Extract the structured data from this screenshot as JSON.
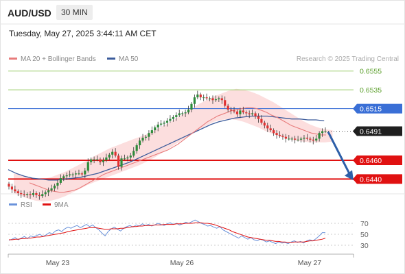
{
  "header": {
    "symbol": "AUD/USD",
    "timeframe": "30 MIN",
    "timestamp": "Tuesday, May 27, 2025 3:44:11 AM CET"
  },
  "legend": {
    "ma20_label": "MA 20 + Bollinger Bands",
    "ma50_label": "MA 50",
    "credit": "Research © 2025 Trading Central"
  },
  "rsi_legend": {
    "rsi_label": "RSI",
    "ma_label": "9MA"
  },
  "colors": {
    "bull": "#2e8b3a",
    "bear": "#e03131",
    "ma20": "#e87b7b",
    "ma50": "#3b5b9b",
    "band": "#fbd3d3",
    "target_line": "#9acd6a",
    "pivot_line": "#3a6fd6",
    "support_line": "#e01111",
    "rsi": "#6a92da",
    "rsi_ma": "#e01111",
    "arrow": "#2d5fa8"
  },
  "chart_data": [
    {
      "type": "line",
      "title": "AUD/USD 30 MIN",
      "x_tick_labels": [
        "May 23",
        "May 26",
        "May 27"
      ],
      "ylim": [
        0.6425,
        0.6565
      ],
      "levels": [
        {
          "name": "target-2",
          "value": 0.6555,
          "label": "0.6555",
          "kind": "target"
        },
        {
          "name": "target-1",
          "value": 0.6535,
          "label": "0.6535",
          "kind": "target"
        },
        {
          "name": "pivot",
          "value": 0.6515,
          "label": "0.6515",
          "kind": "pivot"
        },
        {
          "name": "support-1",
          "value": 0.646,
          "label": "0.6460",
          "kind": "support"
        },
        {
          "name": "support-2",
          "value": 0.644,
          "label": "0.6440",
          "kind": "support"
        }
      ],
      "last_price": "0.6491",
      "series": [
        {
          "name": "MA 20 + Bollinger Bands"
        },
        {
          "name": "MA 50"
        }
      ],
      "close": [
        0.6432,
        0.6429,
        0.6427,
        0.6425,
        0.6424,
        0.6423,
        0.6424,
        0.6423,
        0.6425,
        0.6423,
        0.6422,
        0.6424,
        0.6426,
        0.6428,
        0.643,
        0.6433,
        0.6436,
        0.6441,
        0.6443,
        0.6444,
        0.6445,
        0.6445,
        0.6446,
        0.6446,
        0.6445,
        0.6449,
        0.6458,
        0.6461,
        0.6461,
        0.6461,
        0.6458,
        0.646,
        0.6463,
        0.6466,
        0.6469,
        0.6465,
        0.6453,
        0.6462,
        0.6462,
        0.6463,
        0.6465,
        0.647,
        0.6476,
        0.6481,
        0.6484,
        0.6485,
        0.6489,
        0.6492,
        0.6495,
        0.6498,
        0.6499,
        0.65,
        0.6502,
        0.6504,
        0.6506,
        0.6508,
        0.651,
        0.651,
        0.6511,
        0.6514,
        0.652,
        0.6527,
        0.653,
        0.6527,
        0.6527,
        0.6526,
        0.6526,
        0.6524,
        0.6525,
        0.6526,
        0.6524,
        0.6518,
        0.6514,
        0.6513,
        0.6512,
        0.6509,
        0.6513,
        0.6511,
        0.651,
        0.6509,
        0.651,
        0.6507,
        0.6504,
        0.65,
        0.6497,
        0.6494,
        0.6492,
        0.6489,
        0.6487,
        0.6486,
        0.6485,
        0.6483,
        0.6483,
        0.6483,
        0.6482,
        0.6482,
        0.6483,
        0.6484,
        0.6483,
        0.6482,
        0.6481,
        0.6483,
        0.6489,
        0.6491,
        0.6491
      ],
      "ma20": [
        0.6436,
        0.6434,
        0.6432,
        0.643,
        0.6428,
        0.6427,
        0.6426,
        0.6426,
        0.6427,
        0.6428,
        0.643,
        0.6433,
        0.6436,
        0.6439,
        0.6442,
        0.6445,
        0.6447,
        0.6449,
        0.6451,
        0.6453,
        0.6455,
        0.6457,
        0.6459,
        0.6461,
        0.6463,
        0.6465,
        0.6467,
        0.6469,
        0.6471,
        0.6474,
        0.6477,
        0.6481,
        0.6485,
        0.6489,
        0.6493,
        0.6497,
        0.6501,
        0.6504,
        0.6507,
        0.6509,
        0.6511,
        0.6513,
        0.6514,
        0.6515,
        0.6516,
        0.6516,
        0.6515,
        0.6513,
        0.6511,
        0.6508,
        0.6506,
        0.6503,
        0.65,
        0.6497,
        0.6495,
        0.6493,
        0.6491,
        0.6489,
        0.6488,
        0.6487,
        0.6487
      ],
      "ma20_x0": 43,
      "band_upper": [
        0.6446,
        0.6444,
        0.6442,
        0.644,
        0.644,
        0.6442,
        0.6445,
        0.6448,
        0.6452,
        0.6456,
        0.646,
        0.6465,
        0.6469,
        0.6473,
        0.6476,
        0.6479,
        0.6482,
        0.6485,
        0.6488,
        0.6492,
        0.6496,
        0.65,
        0.6505,
        0.651,
        0.6515,
        0.652,
        0.6524,
        0.6528,
        0.6531,
        0.6534,
        0.6536,
        0.6535,
        0.6533,
        0.653,
        0.6526,
        0.6522,
        0.6517,
        0.6512,
        0.6507,
        0.6502,
        0.6498,
        0.6495,
        0.6493,
        0.6492
      ],
      "band_lower": [
        0.6425,
        0.6422,
        0.6419,
        0.6417,
        0.6416,
        0.6417,
        0.6419,
        0.6422,
        0.6426,
        0.643,
        0.6434,
        0.6437,
        0.644,
        0.6443,
        0.6446,
        0.6449,
        0.6452,
        0.6455,
        0.6459,
        0.6463,
        0.6468,
        0.6473,
        0.6478,
        0.6483,
        0.6488,
        0.6493,
        0.6497,
        0.6501,
        0.6503,
        0.6504,
        0.6503,
        0.6501,
        0.6498,
        0.6495,
        0.6491,
        0.6488,
        0.6485,
        0.6483,
        0.6481,
        0.648,
        0.6479,
        0.6479,
        0.6479,
        0.648
      ],
      "ma50": [
        0.645,
        0.6446,
        0.6443,
        0.6441,
        0.644,
        0.6439,
        0.6439,
        0.644,
        0.6441,
        0.6442,
        0.6444,
        0.6446,
        0.6449,
        0.6452,
        0.6455,
        0.6458,
        0.6462,
        0.6466,
        0.647,
        0.6474,
        0.6478,
        0.6482,
        0.6486,
        0.649,
        0.6494,
        0.6498,
        0.6501,
        0.6503,
        0.6505,
        0.6506,
        0.6507,
        0.6507,
        0.6507,
        0.6506,
        0.6505,
        0.6504,
        0.6504,
        0.6503,
        0.6503,
        0.6502
      ],
      "ma50_x0": 12
    },
    {
      "type": "line",
      "title": "RSI",
      "yticks": [
        30,
        50,
        70
      ],
      "ylim": [
        20,
        80
      ],
      "series": [
        {
          "name": "RSI",
          "values": [
            39,
            41,
            44,
            40,
            43,
            46,
            42,
            47,
            45,
            48,
            50,
            46,
            49,
            53,
            51,
            56,
            58,
            55,
            60,
            63,
            61,
            64,
            66,
            62,
            65,
            68,
            64,
            67,
            62,
            58,
            52,
            47,
            55,
            60,
            63,
            59,
            56,
            61,
            64,
            66,
            63,
            67,
            65,
            69,
            66,
            68,
            65,
            67,
            70,
            68,
            66,
            69,
            71,
            68,
            70,
            67,
            69,
            72,
            70,
            73,
            76,
            73,
            70,
            68,
            65,
            66,
            63,
            61,
            64,
            58,
            55,
            52,
            49,
            46,
            43,
            47,
            44,
            41,
            44,
            40,
            38,
            41,
            39,
            36,
            38,
            35,
            33,
            36,
            34,
            35,
            33,
            36,
            38,
            35,
            37,
            34,
            38,
            40,
            38,
            42,
            47,
            53,
            53
          ]
        },
        {
          "name": "9MA",
          "values": [
            40,
            40,
            41,
            41,
            42,
            42,
            43,
            43,
            44,
            45,
            45,
            46,
            47,
            48,
            49,
            50,
            51,
            52,
            53,
            55,
            56,
            57,
            58,
            59,
            60,
            61,
            62,
            62,
            62,
            61,
            60,
            59,
            59,
            60,
            60,
            60,
            61,
            61,
            62,
            63,
            64,
            64,
            65,
            65,
            66,
            66,
            66,
            67,
            67,
            67,
            68,
            68,
            68,
            68,
            69,
            69,
            69,
            70,
            70,
            70,
            71,
            71,
            71,
            70,
            70,
            69,
            68,
            66,
            64,
            62,
            60,
            58,
            55,
            53,
            51,
            49,
            47,
            45,
            44,
            43,
            42,
            41,
            40,
            39,
            39,
            38,
            37,
            37,
            36,
            36,
            35,
            35,
            36,
            36,
            36,
            36,
            37,
            38,
            38,
            39,
            40,
            41,
            43
          ]
        }
      ]
    }
  ]
}
